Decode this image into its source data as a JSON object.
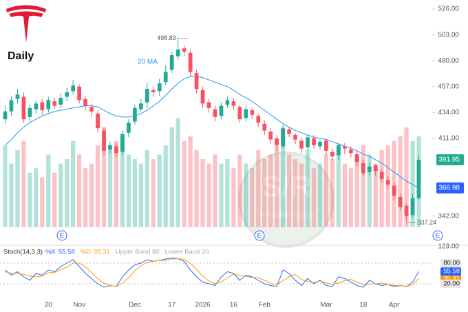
{
  "chart_data": {
    "type": "candlestick",
    "title": "Daily",
    "categories": [
      null,
      null,
      null,
      null,
      null,
      null,
      null,
      "20",
      null,
      null,
      null,
      null,
      "Nov",
      null,
      null,
      null,
      null,
      null,
      null,
      null,
      null,
      "Dec",
      null,
      null,
      null,
      null,
      null,
      "17",
      null,
      null,
      null,
      null,
      "2026",
      null,
      null,
      null,
      null,
      "16",
      null,
      null,
      null,
      null,
      "Feb",
      null,
      null,
      null,
      null,
      null,
      null,
      null,
      null,
      null,
      "Mar",
      null,
      null,
      null,
      null,
      null,
      "18",
      null,
      null,
      null,
      null,
      "Apr",
      null,
      null,
      null,
      null
    ],
    "open": [
      428,
      435,
      446,
      448,
      430,
      437,
      443,
      437,
      444,
      441,
      448,
      453,
      457,
      446,
      439,
      433,
      418,
      401,
      404,
      399,
      416,
      426,
      437,
      443,
      454,
      453,
      461,
      472,
      484,
      491,
      487,
      469,
      454,
      443,
      437,
      431,
      441,
      444,
      439,
      429,
      436,
      431,
      424,
      417,
      411,
      404,
      419,
      414,
      409,
      403,
      411,
      404,
      409,
      399,
      396,
      404,
      401,
      397,
      389,
      381,
      387,
      381,
      374,
      369,
      359,
      351,
      343,
      358
    ],
    "high": [
      440,
      448,
      455,
      452,
      441,
      445,
      446,
      448,
      447,
      451,
      456,
      463,
      459,
      449,
      442,
      436,
      421,
      408,
      407,
      418,
      428,
      441,
      446,
      460,
      457,
      464,
      476,
      488,
      498.83,
      494,
      490,
      472,
      457,
      446,
      440,
      443,
      448,
      447,
      441,
      440,
      438,
      433,
      427,
      420,
      414,
      423,
      421,
      416,
      412,
      414,
      414,
      410,
      411,
      402,
      407,
      407,
      404,
      400,
      392,
      390,
      388,
      383,
      377,
      372,
      362,
      353,
      362,
      396
    ],
    "low": [
      424,
      431,
      442,
      425,
      426,
      433,
      432,
      434,
      437,
      438,
      444,
      450,
      442,
      436,
      430,
      416,
      396,
      398,
      394,
      396,
      412,
      423,
      435,
      438,
      448,
      449,
      458,
      469,
      481,
      484,
      466,
      451,
      438,
      434,
      426,
      428,
      438,
      436,
      425,
      426,
      428,
      421,
      414,
      406,
      400,
      402,
      412,
      406,
      398,
      400,
      402,
      401,
      396,
      391,
      392,
      397,
      394,
      386,
      377,
      378,
      378,
      372,
      366,
      356,
      347,
      337.24,
      341,
      356
    ],
    "close": [
      435,
      445,
      450,
      428,
      438,
      442,
      436,
      445,
      440,
      447,
      452,
      458,
      445,
      440,
      435,
      420,
      400,
      405,
      398,
      415,
      425,
      438,
      442,
      455,
      452,
      460,
      470,
      485,
      490,
      488,
      470,
      455,
      442,
      438,
      430,
      440,
      445,
      440,
      428,
      437,
      432,
      425,
      418,
      410,
      405,
      420,
      415,
      410,
      402,
      412,
      405,
      408,
      400,
      395,
      405,
      402,
      398,
      390,
      380,
      386,
      382,
      375,
      370,
      360,
      350,
      342,
      358,
      391.95
    ],
    "up_color": "#22ab94",
    "down_color": "#f7525f",
    "ylim": [
      332,
      534
    ],
    "yticks": [
      {
        "value": 342,
        "label": "342.00"
      },
      {
        "value": 411,
        "label": "411.00"
      },
      {
        "value": 434,
        "label": "434.00"
      },
      {
        "value": 457,
        "label": "457.00"
      },
      {
        "value": 480,
        "label": "480.00"
      },
      {
        "value": 503,
        "label": "503.00"
      },
      {
        "value": 526,
        "label": "526.00"
      }
    ],
    "ma": {
      "name": "20 MA",
      "color": "#2196f3",
      "values": [
        405,
        410,
        416,
        421,
        425,
        428,
        431,
        433,
        435,
        436,
        437,
        438,
        439,
        440,
        440,
        439,
        436,
        433,
        431,
        430,
        430,
        431,
        433,
        436,
        440,
        444,
        449,
        455,
        460,
        464,
        466,
        466,
        465,
        463,
        461,
        459,
        457,
        454,
        450,
        447,
        444,
        440,
        436,
        432,
        428,
        424,
        421,
        418,
        416,
        414,
        412,
        411,
        410,
        408,
        406,
        404,
        402,
        400,
        397,
        395,
        392,
        389,
        385,
        381,
        377,
        373,
        370,
        366.98
      ]
    },
    "volume": {
      "label": "123.00",
      "ylim": [
        0,
        250
      ],
      "values": [
        90,
        70,
        85,
        95,
        60,
        65,
        55,
        80,
        60,
        70,
        75,
        95,
        80,
        65,
        70,
        90,
        110,
        85,
        95,
        100,
        80,
        75,
        70,
        85,
        75,
        80,
        90,
        110,
        120,
        95,
        100,
        85,
        75,
        70,
        80,
        70,
        75,
        65,
        80,
        70,
        65,
        85,
        75,
        80,
        90,
        110,
        80,
        75,
        70,
        85,
        65,
        70,
        80,
        75,
        85,
        70,
        65,
        75,
        90,
        80,
        70,
        85,
        90,
        95,
        100,
        110,
        95,
        100
      ]
    },
    "stoch": {
      "title": "Stoch(14,3,3)",
      "ylim": [
        0,
        100
      ],
      "yticks": [
        {
          "value": 20,
          "label": "20.00"
        },
        {
          "value": 80,
          "label": "80.00"
        }
      ],
      "upper_band": "Upper Band 80",
      "lower_band": "Lower Band 20",
      "series": [
        {
          "name": "%K",
          "color": "#2962ff",
          "values": [
            60,
            45,
            55,
            40,
            30,
            50,
            45,
            60,
            55,
            70,
            80,
            90,
            70,
            50,
            35,
            20,
            10,
            15,
            12,
            40,
            60,
            75,
            80,
            90,
            85,
            88,
            92,
            95,
            93,
            85,
            60,
            40,
            25,
            20,
            15,
            40,
            55,
            50,
            30,
            45,
            40,
            30,
            20,
            15,
            12,
            60,
            50,
            30,
            15,
            35,
            20,
            30,
            15,
            12,
            40,
            35,
            25,
            15,
            10,
            30,
            20,
            15,
            18,
            12,
            15,
            12,
            25,
            55.58
          ]
        },
        {
          "name": "%D",
          "color": "#ff9800",
          "values": [
            55,
            50,
            50,
            47,
            42,
            40,
            42,
            52,
            53,
            62,
            68,
            80,
            80,
            70,
            52,
            35,
            22,
            15,
            12,
            22,
            37,
            58,
            72,
            82,
            85,
            88,
            88,
            92,
            93,
            91,
            79,
            62,
            42,
            28,
            20,
            25,
            37,
            48,
            45,
            42,
            38,
            38,
            30,
            22,
            16,
            29,
            41,
            47,
            32,
            27,
            23,
            28,
            22,
            19,
            22,
            29,
            33,
            25,
            17,
            18,
            20,
            22,
            18,
            15,
            15,
            13,
            17,
            35.31
          ]
        }
      ]
    },
    "events": [
      "E",
      "E",
      "E"
    ],
    "watermark": {
      "title": "S/R",
      "subtitle": "SmartReversals"
    }
  }
}
